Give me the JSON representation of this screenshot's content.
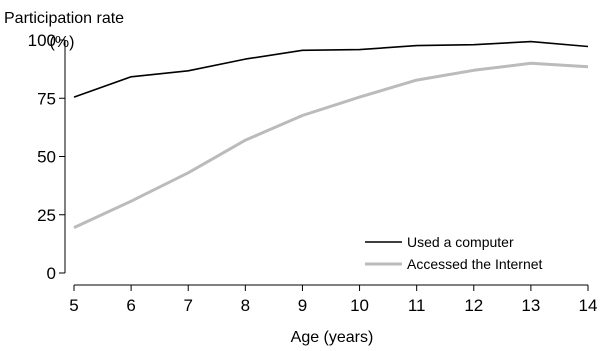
{
  "chart_data": {
    "type": "line",
    "ylabel": "Participation rate",
    "yunit": "(%)",
    "xlabel": "Age (years)",
    "x": [
      5,
      6,
      7,
      8,
      9,
      10,
      11,
      12,
      13,
      14
    ],
    "xlim": [
      5,
      14
    ],
    "ylim": [
      0,
      100
    ],
    "yticks": [
      0,
      25,
      50,
      75,
      100
    ],
    "grid": false,
    "legend_position": "bottom-right",
    "series": [
      {
        "name": "Used a computer",
        "color": "#000000",
        "values": [
          75.5,
          84.2,
          86.8,
          91.8,
          95.6,
          95.9,
          97.6,
          98.0,
          99.3,
          97.2
        ]
      },
      {
        "name": "Accessed the Internet",
        "color": "#bbbbbb",
        "values": [
          19.5,
          30.8,
          43.0,
          57.0,
          67.6,
          75.5,
          82.8,
          87.0,
          90.0,
          88.5
        ]
      }
    ]
  }
}
